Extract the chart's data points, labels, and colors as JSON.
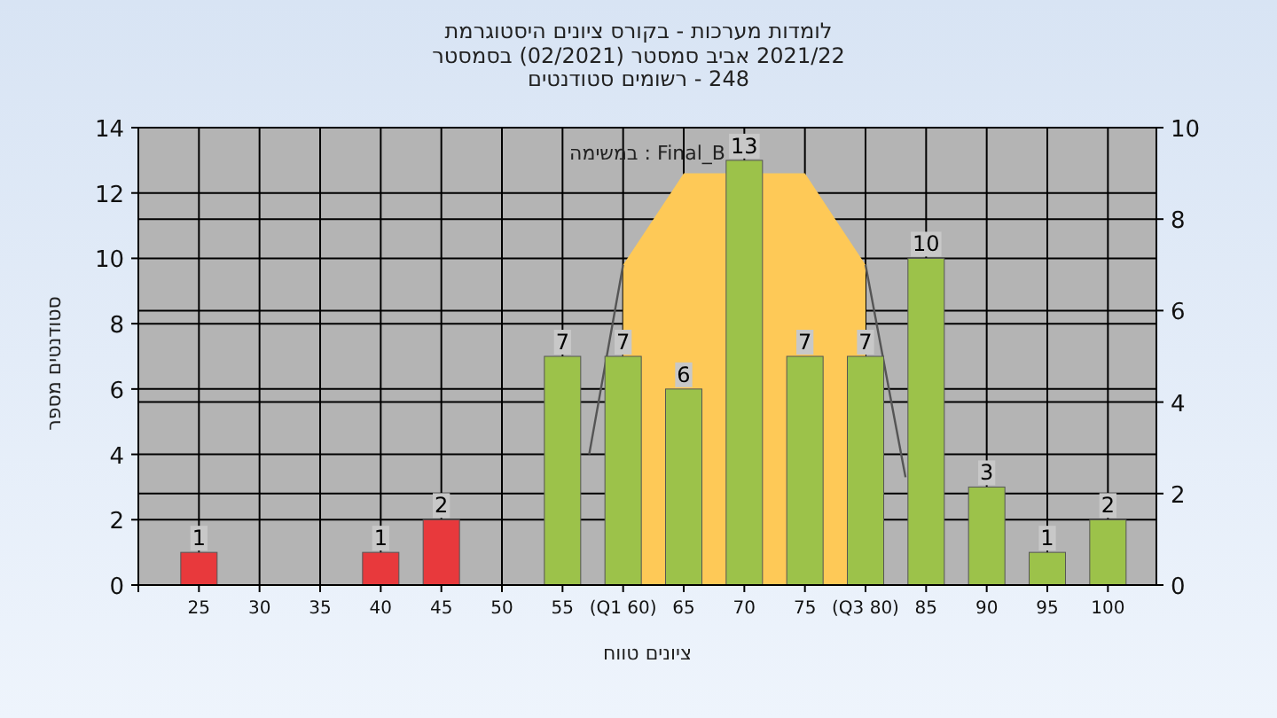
{
  "chart_data": {
    "type": "bar",
    "title": "היסטוגרמת ציונים בקורס - מערכות לומדות",
    "subtitle": "בסמסטר (02/2021) סמסטר אביב 2021/22\nסטודנטים רשומים - 248",
    "xlabel": "טווח ציונים",
    "ylabel": "מספר סטודנטים",
    "annotations": [
      "במשימה : Final_B"
    ],
    "x": [
      25,
      30,
      35,
      40,
      45,
      50,
      55,
      60,
      65,
      70,
      75,
      80,
      85,
      90,
      95,
      100
    ],
    "xlim": [
      20,
      104
    ],
    "xticks": [
      {
        "value": 20,
        "label": null
      },
      25,
      30,
      35,
      40,
      45,
      50,
      55,
      {
        "value": 60,
        "label": "(Q1 60)"
      },
      65,
      70,
      75,
      {
        "value": 80,
        "label": "(Q3 80)"
      },
      85,
      90,
      95,
      100
    ],
    "ylim": [
      0,
      14
    ],
    "yticks": [
      0,
      2,
      4,
      6,
      8,
      10,
      12,
      14
    ],
    "y2lim": [
      0,
      10
    ],
    "y2ticks": [
      0,
      2,
      4,
      6,
      8,
      10
    ],
    "grid": true,
    "series": [
      {
        "type": "area",
        "color": "#fec957",
        "x": [
          60,
          65,
          75,
          80
        ],
        "values": [
          9.8,
          12.6,
          12.6,
          9.8
        ]
      },
      {
        "type": "line",
        "color": "#555555",
        "x": [
          57.2,
          60,
          70,
          80,
          83.3
        ],
        "values": [
          4,
          9.8,
          null,
          9.8,
          3.3
        ]
      },
      {
        "type": "bar",
        "colors": [
          "#e8393c",
          "#e8393c",
          "#e8393c",
          "#e8393c",
          "#e8393c",
          "#e8393c",
          "#9cc24a",
          "#9cc24a",
          "#9cc24a",
          "#9cc24a",
          "#9cc24a",
          "#9cc24a",
          "#9cc24a",
          "#9cc24a",
          "#9cc24a",
          "#9cc24a"
        ],
        "values": [
          1,
          0,
          0,
          1,
          2,
          0,
          7,
          7,
          6,
          13,
          7,
          7,
          10,
          3,
          1,
          2
        ],
        "value_labels": [
          "1",
          null,
          null,
          "1",
          "2",
          null,
          "7",
          "7",
          "6",
          "13",
          "7",
          "7",
          "10",
          "3",
          "1",
          "2"
        ]
      }
    ]
  }
}
